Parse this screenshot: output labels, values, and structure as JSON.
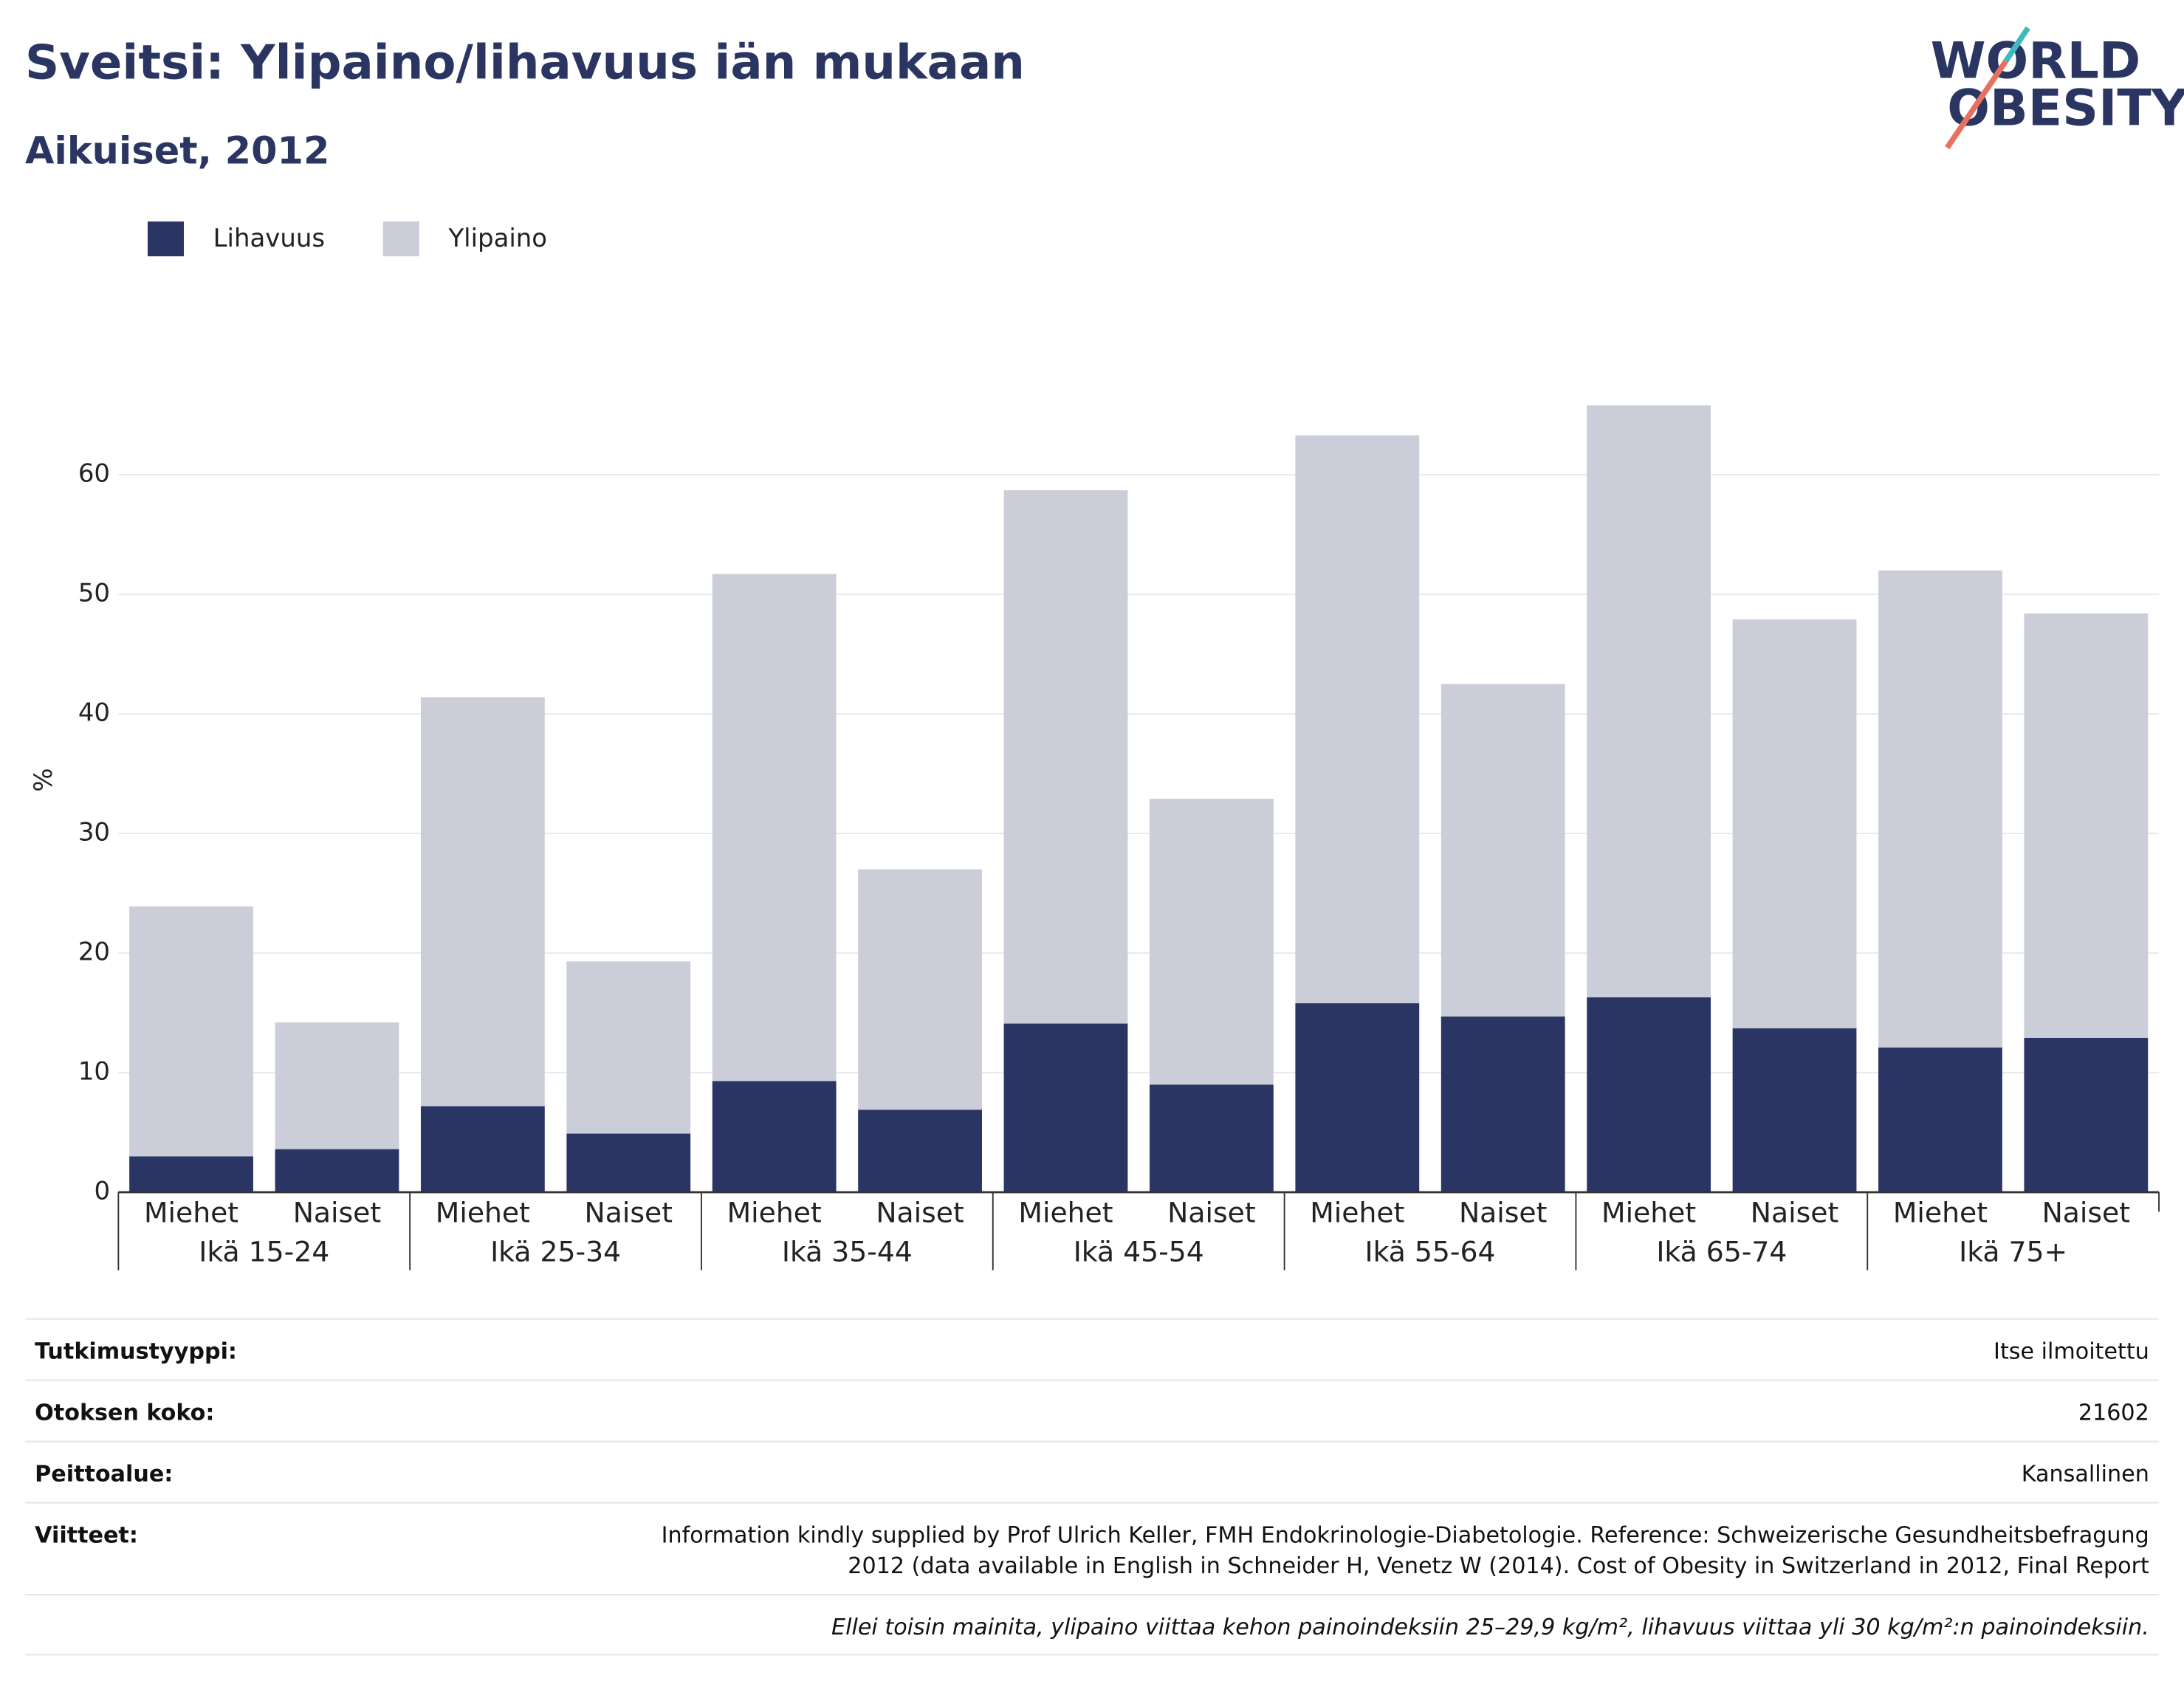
{
  "chart_data": {
    "type": "stacked_bar",
    "title": "Sveitsi: Ylipaino/lihavuus iän mukaan",
    "subtitle": "Aikuiset, 2012",
    "ylabel": "%",
    "categories": [
      "Miehet",
      "Naiset",
      "Miehet",
      "Naiset",
      "Miehet",
      "Naiset",
      "Miehet",
      "Naiset",
      "Miehet",
      "Naiset",
      "Miehet",
      "Naiset",
      "Miehet",
      "Naiset"
    ],
    "groups": [
      "Ikä 15-24",
      "Ikä 25-34",
      "Ikä 35-44",
      "Ikä 45-54",
      "Ikä 55-64",
      "Ikä 65-74",
      "Ikä 75+"
    ],
    "series": [
      {
        "name": "Lihavuus",
        "color": "#2a3564",
        "values": [
          3.0,
          3.6,
          7.2,
          4.9,
          9.3,
          6.9,
          14.1,
          9.0,
          15.8,
          14.7,
          16.3,
          13.7,
          12.1,
          12.9
        ]
      },
      {
        "name": "Ylipaino",
        "color": "#cbcdd9",
        "values": [
          20.9,
          10.6,
          34.2,
          14.4,
          42.4,
          20.1,
          44.6,
          23.9,
          47.5,
          27.8,
          49.5,
          34.2,
          39.9,
          35.5
        ]
      }
    ],
    "ylim": [
      0,
      70
    ],
    "yticks": [
      0,
      10,
      20,
      30,
      40,
      50,
      60
    ],
    "grid": true,
    "legend": "top-left"
  },
  "logo": {
    "line1": "WORLD",
    "line2": "OBESITY"
  },
  "table": {
    "rows": [
      {
        "label": "Tutkimustyyppi:",
        "value": [
          "Itse ilmoitettu"
        ]
      },
      {
        "label": "Otoksen koko:",
        "value": [
          "21602"
        ]
      },
      {
        "label": "Peittoalue:",
        "value": [
          "Kansallinen"
        ]
      },
      {
        "label": "Viitteet:",
        "value": [
          "Information kindly supplied by Prof Ulrich Keller, FMH Endokrinologie-Diabetologie. Reference: Schweizerische Gesundheitsbefragung",
          "2012 (data available in English in Schneider H, Venetz W (2014). Cost of Obesity in Switzerland in 2012, Final Report"
        ]
      }
    ],
    "footnote": "Ellei toisin mainita, ylipaino viittaa kehon painoindeksiin 25–29,9 kg/m², lihavuus viittaa yli 30 kg/m²:n painoindeksiin."
  }
}
